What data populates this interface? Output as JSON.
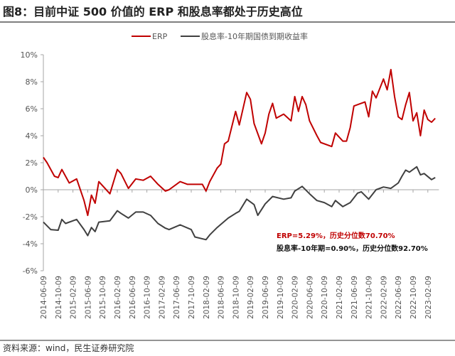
{
  "title": "图8：目前中证 500 价值的 ERP 和股息率都处于历史高位",
  "source": "资料来源：wind，民生证券研究院",
  "colors": {
    "erp": "#C00000",
    "dividend": "#404040",
    "axis": "#A6A6A6"
  },
  "chart_data": {
    "type": "line",
    "title": "",
    "xlabel": "",
    "ylabel": "",
    "ylim": [
      -6,
      10
    ],
    "y_ticks": [
      "10%",
      "8%",
      "6%",
      "4%",
      "2%",
      "0%",
      "-2%",
      "-4%",
      "-6%"
    ],
    "y_tick_values": [
      10,
      8,
      6,
      4,
      2,
      0,
      -2,
      -4,
      -6
    ],
    "x_ticks": [
      "2014-06-09",
      "2014-10-09",
      "2015-02-09",
      "2015-06-09",
      "2015-10-09",
      "2016-02-09",
      "2016-06-09",
      "2016-10-09",
      "2017-02-09",
      "2017-06-09",
      "2017-10-09",
      "2018-02-09",
      "2018-06-09",
      "2018-10-09",
      "2019-02-09",
      "2019-06-09",
      "2019-10-09",
      "2020-02-09",
      "2020-06-09",
      "2020-10-09",
      "2021-02-09",
      "2021-06-09",
      "2021-10-09",
      "2022-02-09",
      "2022-06-09",
      "2022-10-09",
      "2023-02-09"
    ],
    "grid": false,
    "legend_placement": "top",
    "annotations": [
      {
        "text": "ERP=5.29%，历史分位数70.70%",
        "series": "ERP"
      },
      {
        "text": "股息率-10年期=0.90%，历史分位数92.70%",
        "series": "股息率-10年期国债到期收益率"
      }
    ],
    "series": [
      {
        "name": "ERP",
        "color": "#C00000",
        "points": [
          [
            "2014-06",
            2.4
          ],
          [
            "2014-07",
            2.0
          ],
          [
            "2014-09",
            1.0
          ],
          [
            "2014-10",
            0.9
          ],
          [
            "2014-11",
            1.5
          ],
          [
            "2015-01",
            0.5
          ],
          [
            "2015-03",
            0.8
          ],
          [
            "2015-05",
            -0.8
          ],
          [
            "2015-06",
            -1.9
          ],
          [
            "2015-07",
            -0.4
          ],
          [
            "2015-08",
            -1.0
          ],
          [
            "2015-09",
            0.6
          ],
          [
            "2015-12",
            -0.3
          ],
          [
            "2016-02",
            1.5
          ],
          [
            "2016-03",
            1.2
          ],
          [
            "2016-05",
            0.1
          ],
          [
            "2016-07",
            0.8
          ],
          [
            "2016-09",
            0.7
          ],
          [
            "2016-11",
            1.0
          ],
          [
            "2017-01",
            0.4
          ],
          [
            "2017-03",
            -0.1
          ],
          [
            "2017-04",
            0.0
          ],
          [
            "2017-07",
            0.6
          ],
          [
            "2017-09",
            0.4
          ],
          [
            "2017-11",
            0.4
          ],
          [
            "2018-01",
            0.4
          ],
          [
            "2018-02",
            -0.1
          ],
          [
            "2018-03",
            0.6
          ],
          [
            "2018-05",
            1.6
          ],
          [
            "2018-06",
            1.9
          ],
          [
            "2018-07",
            3.4
          ],
          [
            "2018-08",
            3.6
          ],
          [
            "2018-10",
            5.8
          ],
          [
            "2018-11",
            4.8
          ],
          [
            "2019-01",
            7.2
          ],
          [
            "2019-02",
            6.7
          ],
          [
            "2019-03",
            4.9
          ],
          [
            "2019-05",
            3.4
          ],
          [
            "2019-06",
            4.2
          ],
          [
            "2019-07",
            5.6
          ],
          [
            "2019-08",
            6.4
          ],
          [
            "2019-09",
            5.3
          ],
          [
            "2019-11",
            5.6
          ],
          [
            "2020-01",
            5.1
          ],
          [
            "2020-02",
            6.9
          ],
          [
            "2020-03",
            5.8
          ],
          [
            "2020-04",
            6.9
          ],
          [
            "2020-05",
            6.3
          ],
          [
            "2020-06",
            5.1
          ],
          [
            "2020-08",
            4.0
          ],
          [
            "2020-09",
            3.5
          ],
          [
            "2020-12",
            3.2
          ],
          [
            "2021-01",
            4.2
          ],
          [
            "2021-03",
            3.6
          ],
          [
            "2021-04",
            3.6
          ],
          [
            "2021-05",
            4.6
          ],
          [
            "2021-06",
            6.2
          ],
          [
            "2021-09",
            6.5
          ],
          [
            "2021-10",
            5.4
          ],
          [
            "2021-11",
            7.3
          ],
          [
            "2021-12",
            6.8
          ],
          [
            "2022-02",
            8.2
          ],
          [
            "2022-03",
            7.4
          ],
          [
            "2022-04",
            8.9
          ],
          [
            "2022-05",
            6.9
          ],
          [
            "2022-06",
            5.4
          ],
          [
            "2022-07",
            5.2
          ],
          [
            "2022-08",
            6.3
          ],
          [
            "2022-09",
            7.2
          ],
          [
            "2022-10",
            5.1
          ],
          [
            "2022-11",
            5.7
          ],
          [
            "2022-12",
            4.0
          ],
          [
            "2023-01",
            5.9
          ],
          [
            "2023-02",
            5.2
          ],
          [
            "2023-03",
            5.0
          ],
          [
            "2023-04",
            5.29
          ]
        ]
      },
      {
        "name": "股息率-10年期国债到期收益率",
        "color": "#404040",
        "points": [
          [
            "2014-06",
            -2.4
          ],
          [
            "2014-08",
            -2.95
          ],
          [
            "2014-10",
            -3.0
          ],
          [
            "2014-11",
            -2.2
          ],
          [
            "2014-12",
            -2.5
          ],
          [
            "2015-03",
            -2.2
          ],
          [
            "2015-05",
            -2.95
          ],
          [
            "2015-06",
            -3.4
          ],
          [
            "2015-07",
            -2.8
          ],
          [
            "2015-08",
            -3.1
          ],
          [
            "2015-09",
            -2.4
          ],
          [
            "2015-12",
            -2.3
          ],
          [
            "2016-02",
            -1.56
          ],
          [
            "2016-03",
            -1.75
          ],
          [
            "2016-05",
            -2.1
          ],
          [
            "2016-07",
            -1.65
          ],
          [
            "2016-09",
            -1.65
          ],
          [
            "2016-11",
            -1.9
          ],
          [
            "2017-01",
            -2.5
          ],
          [
            "2017-03",
            -2.85
          ],
          [
            "2017-04",
            -2.95
          ],
          [
            "2017-07",
            -2.6
          ],
          [
            "2017-10",
            -2.95
          ],
          [
            "2017-11",
            -3.5
          ],
          [
            "2018-02",
            -3.7
          ],
          [
            "2018-03",
            -3.35
          ],
          [
            "2018-05",
            -2.8
          ],
          [
            "2018-08",
            -2.1
          ],
          [
            "2018-10",
            -1.75
          ],
          [
            "2018-11",
            -1.6
          ],
          [
            "2019-01",
            -0.7
          ],
          [
            "2019-03",
            -1.1
          ],
          [
            "2019-04",
            -1.9
          ],
          [
            "2019-06",
            -1.05
          ],
          [
            "2019-08",
            -0.5
          ],
          [
            "2019-11",
            -0.7
          ],
          [
            "2020-01",
            -0.6
          ],
          [
            "2020-02",
            -0.1
          ],
          [
            "2020-04",
            0.25
          ],
          [
            "2020-06",
            -0.3
          ],
          [
            "2020-08",
            -0.8
          ],
          [
            "2020-10",
            -0.95
          ],
          [
            "2020-12",
            -1.25
          ],
          [
            "2021-01",
            -0.8
          ],
          [
            "2021-03",
            -1.25
          ],
          [
            "2021-05",
            -0.95
          ],
          [
            "2021-07",
            -0.25
          ],
          [
            "2021-08",
            -0.15
          ],
          [
            "2021-10",
            -0.7
          ],
          [
            "2021-12",
            0.0
          ],
          [
            "2022-02",
            0.2
          ],
          [
            "2022-04",
            0.1
          ],
          [
            "2022-06",
            0.5
          ],
          [
            "2022-07",
            1.0
          ],
          [
            "2022-08",
            1.45
          ],
          [
            "2022-09",
            1.3
          ],
          [
            "2022-11",
            1.7
          ],
          [
            "2022-12",
            1.1
          ],
          [
            "2023-01",
            1.2
          ],
          [
            "2023-03",
            0.75
          ],
          [
            "2023-04",
            0.9
          ]
        ]
      }
    ]
  }
}
